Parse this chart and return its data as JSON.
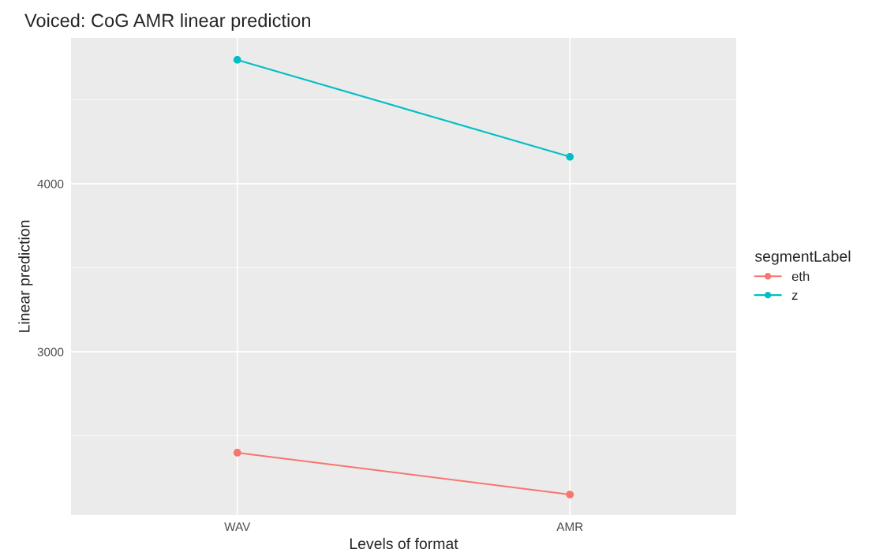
{
  "chart_data": {
    "type": "line",
    "title": "Voiced: CoG AMR linear prediction",
    "xlabel": "Levels of format",
    "ylabel": "Linear prediction",
    "legend_title": "segmentLabel",
    "categories": [
      "WAV",
      "AMR"
    ],
    "series": [
      {
        "name": "eth",
        "color": "#f8766d",
        "values": [
          2399,
          2150
        ]
      },
      {
        "name": "z",
        "color": "#00bfc4",
        "values": [
          4737,
          4160
        ]
      }
    ],
    "ylim": [
      2028,
      4868
    ],
    "yticks": [
      3000,
      4000
    ],
    "grid": true,
    "legend": "right",
    "marker": "circle",
    "line_style": "solid"
  }
}
